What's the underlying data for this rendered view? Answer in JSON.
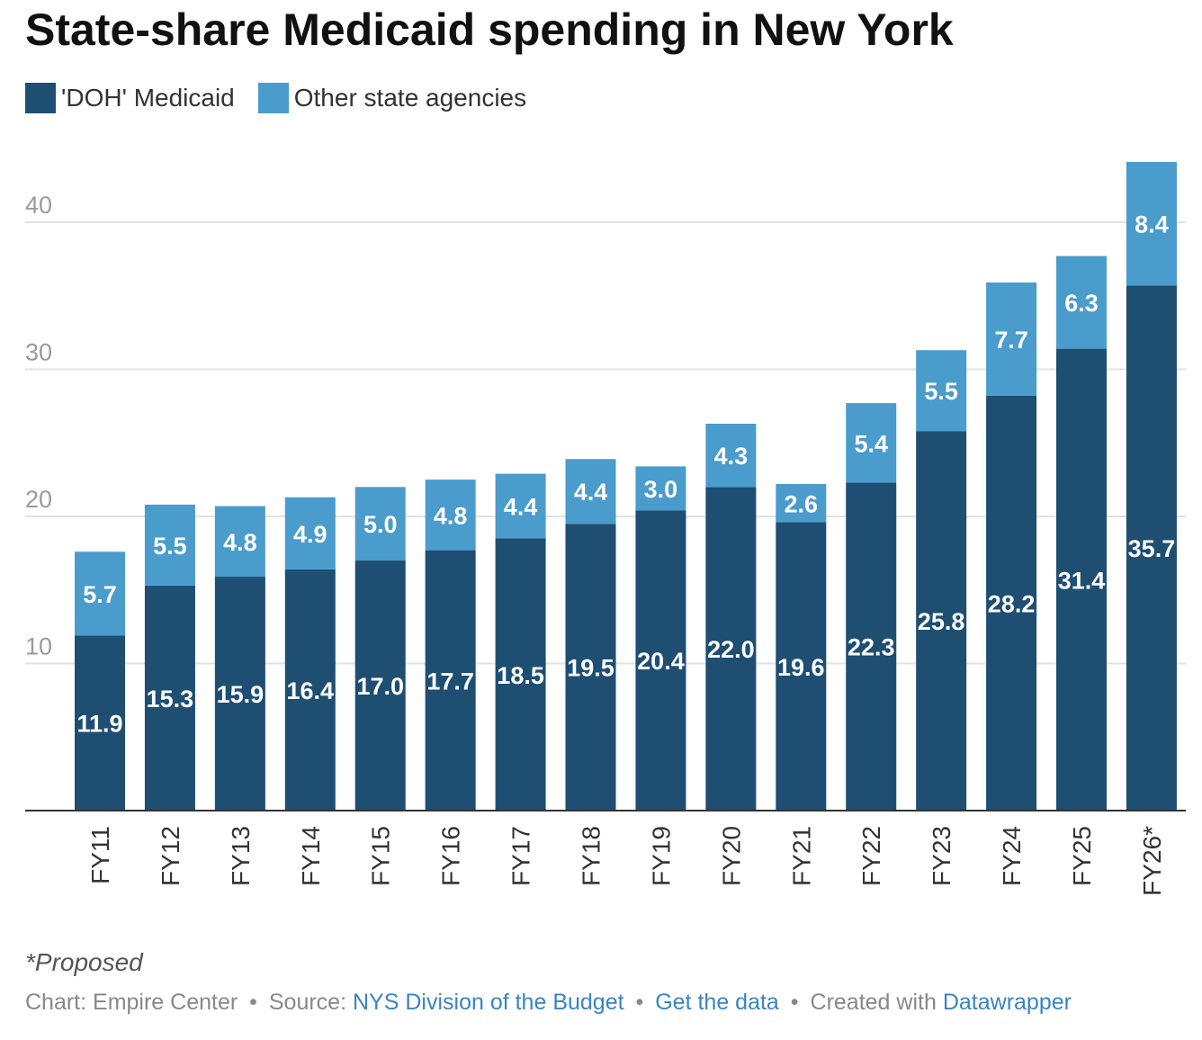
{
  "title": "State-share Medicaid spending in New York",
  "legend": [
    {
      "label": "'DOH' Medicaid",
      "color": "#1f4e73"
    },
    {
      "label": "Other state agencies",
      "color": "#4a9ccc"
    }
  ],
  "chart_data": {
    "type": "bar",
    "stacked": true,
    "title": "State-share Medicaid spending in New York",
    "categories": [
      "FY11",
      "FY12",
      "FY13",
      "FY14",
      "FY15",
      "FY16",
      "FY17",
      "FY18",
      "FY19",
      "FY20",
      "FY21",
      "FY22",
      "FY23",
      "FY24",
      "FY25",
      "FY26*"
    ],
    "series": [
      {
        "name": "'DOH' Medicaid",
        "color": "#1f4e73",
        "values": [
          11.9,
          15.3,
          15.9,
          16.4,
          17.0,
          17.7,
          18.5,
          19.5,
          20.4,
          22.0,
          19.6,
          22.3,
          25.8,
          28.2,
          31.4,
          35.7
        ]
      },
      {
        "name": "Other state agencies",
        "color": "#4a9ccc",
        "values": [
          5.7,
          5.5,
          4.8,
          4.9,
          5.0,
          4.8,
          4.4,
          4.4,
          3.0,
          4.3,
          2.6,
          5.4,
          5.5,
          7.7,
          6.3,
          8.4
        ]
      }
    ],
    "y_ticks": [
      10,
      20,
      30,
      40
    ],
    "ylim": [
      0,
      44.1
    ],
    "grid": true,
    "legend_position": "top-left",
    "x_tick_rotation": "vertical"
  },
  "footnote": "*Proposed",
  "credits": {
    "chart_prefix": "Chart: Empire Center",
    "source_prefix": "Source:",
    "source_link": "NYS Division of the Budget",
    "data_link": "Get the data",
    "created_prefix": "Created with",
    "tool_link": "Datawrapper",
    "separator": "•"
  }
}
